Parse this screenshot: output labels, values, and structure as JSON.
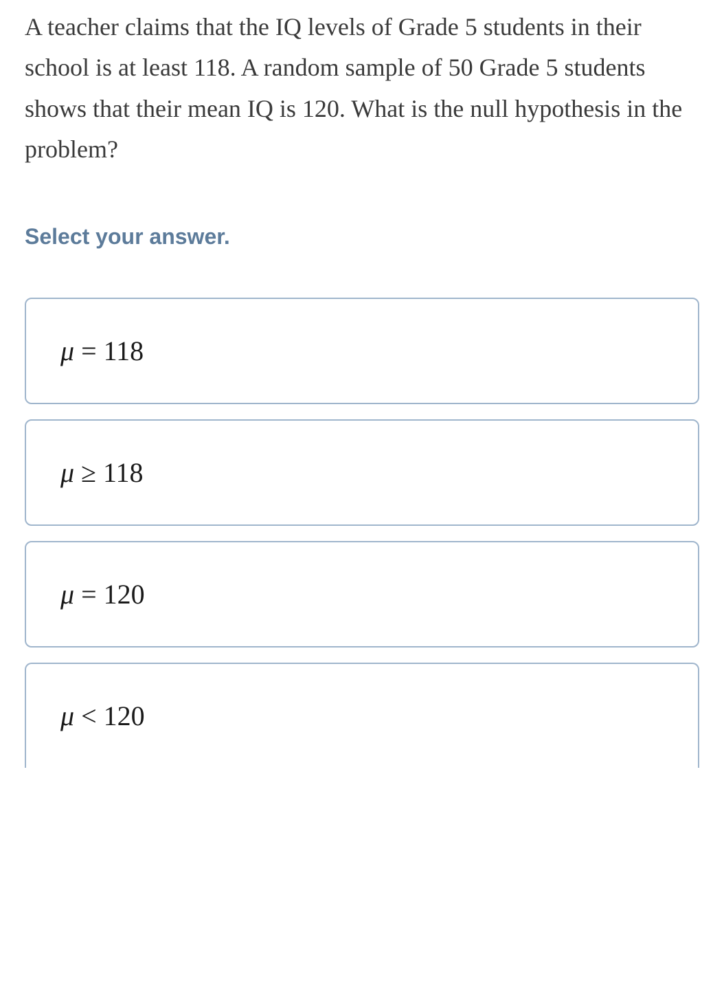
{
  "question": {
    "text": "A teacher claims that the IQ levels of Grade 5 students in their school is at least 118. A random sample of 50 Grade 5 students shows that their mean IQ is 120. What is the null hypothesis in the problem?",
    "color": "#3a3a3a",
    "fontsize": 36
  },
  "instruction": {
    "text": "Select your answer.",
    "color": "#5c7b9a",
    "fontsize": 32
  },
  "options": [
    {
      "mu": "μ",
      "op": "=",
      "value": "118"
    },
    {
      "mu": "μ",
      "op": "≥",
      "value": "118"
    },
    {
      "mu": "μ",
      "op": "=",
      "value": "120"
    },
    {
      "mu": "μ",
      "op": "<",
      "value": "120"
    }
  ],
  "styling": {
    "option_border_color": "#9fb5cc",
    "option_border_radius": 10,
    "background_color": "#ffffff",
    "option_text_color": "#1a1a1a",
    "option_fontsize": 40
  }
}
